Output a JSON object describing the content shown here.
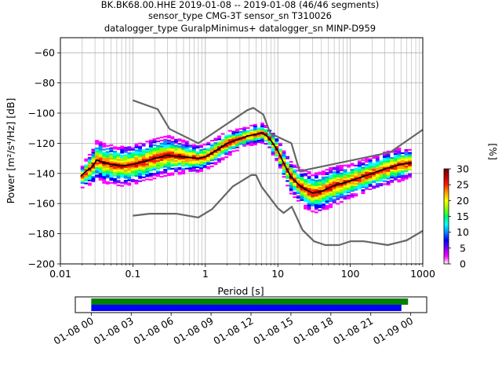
{
  "chart_data": [
    {
      "type": "heatmap",
      "title_lines": [
        "BK.BK68.00.HHE   2019-01-08 -- 2019-01-08  (46/46 segments)",
        "sensor_type CMG-3T sensor_sn T310026",
        "datalogger_type GuralpMinimus+ datalogger_sn MINP-D959"
      ],
      "xlabel": "Period [s]",
      "ylabel": "Power [m²/s⁴/Hz] [dB]",
      "xscale": "log",
      "xlim": [
        0.01,
        1000
      ],
      "ylim": [
        -200,
        -50
      ],
      "grid": true,
      "x_ticks": [
        {
          "value": 0.01,
          "label": "0.01"
        },
        {
          "value": 0.1,
          "label": "0.1"
        },
        {
          "value": 1,
          "label": "1"
        },
        {
          "value": 10,
          "label": "10"
        },
        {
          "value": 100,
          "label": "100"
        },
        {
          "value": 1000,
          "label": "1000"
        }
      ],
      "y_ticks": [
        -60,
        -80,
        -100,
        -120,
        -140,
        -160,
        -180,
        -200
      ],
      "colorbar": {
        "label": "[%]",
        "range": [
          0,
          30
        ],
        "ticks": [
          0,
          5,
          10,
          15,
          20,
          25,
          30
        ],
        "colors": [
          "#ffffff",
          "#ff00ff",
          "#7b00ff",
          "#0000ff",
          "#0090ff",
          "#00ffff",
          "#00ff60",
          "#90ff00",
          "#ffff00",
          "#ffa000",
          "#ff2000",
          "#c00000",
          "#700000"
        ]
      },
      "density_band": [
        {
          "x": 0.019,
          "y": -143,
          "w": 3
        },
        {
          "x": 0.022,
          "y": -140,
          "w": 4
        },
        {
          "x": 0.027,
          "y": -136,
          "w": 5
        },
        {
          "x": 0.032,
          "y": -131,
          "w": 6
        },
        {
          "x": 0.04,
          "y": -133,
          "w": 6
        },
        {
          "x": 0.05,
          "y": -134,
          "w": 6
        },
        {
          "x": 0.07,
          "y": -135,
          "w": 6
        },
        {
          "x": 0.1,
          "y": -134,
          "w": 6
        },
        {
          "x": 0.15,
          "y": -132,
          "w": 6
        },
        {
          "x": 0.2,
          "y": -130,
          "w": 6
        },
        {
          "x": 0.3,
          "y": -128,
          "w": 6
        },
        {
          "x": 0.5,
          "y": -129,
          "w": 5
        },
        {
          "x": 0.8,
          "y": -130,
          "w": 4
        },
        {
          "x": 1.0,
          "y": -129,
          "w": 4
        },
        {
          "x": 1.5,
          "y": -124,
          "w": 4
        },
        {
          "x": 2,
          "y": -120,
          "w": 4
        },
        {
          "x": 3,
          "y": -117,
          "w": 3
        },
        {
          "x": 4,
          "y": -115,
          "w": 3
        },
        {
          "x": 5,
          "y": -114,
          "w": 3
        },
        {
          "x": 6,
          "y": -113,
          "w": 3
        },
        {
          "x": 7,
          "y": -115,
          "w": 3
        },
        {
          "x": 8,
          "y": -118,
          "w": 3
        },
        {
          "x": 10,
          "y": -125,
          "w": 4
        },
        {
          "x": 12,
          "y": -133,
          "w": 4
        },
        {
          "x": 15,
          "y": -142,
          "w": 5
        },
        {
          "x": 20,
          "y": -148,
          "w": 5
        },
        {
          "x": 25,
          "y": -151,
          "w": 6
        },
        {
          "x": 30,
          "y": -153,
          "w": 6
        },
        {
          "x": 40,
          "y": -152,
          "w": 6
        },
        {
          "x": 60,
          "y": -148,
          "w": 6
        },
        {
          "x": 100,
          "y": -145,
          "w": 5
        },
        {
          "x": 200,
          "y": -140,
          "w": 5
        },
        {
          "x": 300,
          "y": -137,
          "w": 5
        },
        {
          "x": 500,
          "y": -134,
          "w": 5
        },
        {
          "x": 700,
          "y": -133,
          "w": 4
        }
      ],
      "series": [
        {
          "role": "mode",
          "color": "#000000",
          "points": [
            [
              0.019,
              -142
            ],
            [
              0.022,
              -139
            ],
            [
              0.027,
              -136
            ],
            [
              0.032,
              -131
            ],
            [
              0.04,
              -133
            ],
            [
              0.05,
              -134
            ],
            [
              0.07,
              -135
            ],
            [
              0.1,
              -134
            ],
            [
              0.15,
              -132
            ],
            [
              0.2,
              -130
            ],
            [
              0.3,
              -128
            ],
            [
              0.5,
              -129
            ],
            [
              0.8,
              -130
            ],
            [
              1.0,
              -129
            ],
            [
              1.5,
              -124
            ],
            [
              2,
              -120
            ],
            [
              3,
              -117
            ],
            [
              4,
              -115
            ],
            [
              5,
              -114
            ],
            [
              6,
              -113
            ],
            [
              7,
              -115
            ],
            [
              8,
              -118
            ],
            [
              10,
              -125
            ],
            [
              12,
              -133
            ],
            [
              15,
              -142
            ],
            [
              20,
              -148
            ],
            [
              25,
              -151
            ],
            [
              30,
              -153
            ],
            [
              40,
              -152
            ],
            [
              60,
              -148
            ],
            [
              100,
              -145
            ],
            [
              200,
              -140
            ],
            [
              300,
              -137
            ],
            [
              500,
              -134
            ],
            [
              700,
              -133
            ]
          ]
        },
        {
          "role": "new-high-noise-model",
          "color": "#666666",
          "points": [
            [
              0.1,
              -91.5
            ],
            [
              0.22,
              -97.4
            ],
            [
              0.32,
              -110.5
            ],
            [
              0.8,
              -120
            ],
            [
              3.8,
              -98
            ],
            [
              4.6,
              -96.5
            ],
            [
              6.3,
              -101
            ],
            [
              7.9,
              -113.5
            ],
            [
              15.4,
              -120
            ],
            [
              20,
              -138.5
            ],
            [
              354.8,
              -126
            ],
            [
              1000,
              -111
            ]
          ]
        },
        {
          "role": "new-low-noise-model",
          "color": "#666666",
          "points": [
            [
              0.1,
              -168
            ],
            [
              0.17,
              -166.7
            ],
            [
              0.4,
              -166.7
            ],
            [
              0.8,
              -169.2
            ],
            [
              1.24,
              -163.7
            ],
            [
              2.4,
              -148.6
            ],
            [
              4.3,
              -141.1
            ],
            [
              5.0,
              -141.1
            ],
            [
              6.0,
              -149
            ],
            [
              10,
              -163
            ],
            [
              12,
              -166.2
            ],
            [
              15.6,
              -162.1
            ],
            [
              21.9,
              -177.5
            ],
            [
              31.6,
              -185
            ],
            [
              45,
              -187.5
            ],
            [
              70,
              -187.5
            ],
            [
              101,
              -185
            ],
            [
              154,
              -185
            ],
            [
              328,
              -187.5
            ],
            [
              600,
              -184.4
            ],
            [
              1000,
              -178
            ]
          ]
        }
      ]
    },
    {
      "type": "timeline",
      "x_ticks": [
        "01-08 00",
        "01-08 03",
        "01-08 06",
        "01-08 09",
        "01-08 12",
        "01-08 15",
        "01-08 18",
        "01-08 21",
        "01-09 00"
      ],
      "x_tick_hours": [
        0,
        3,
        6,
        9,
        12,
        15,
        18,
        21,
        24
      ],
      "xlim_hours": [
        -1.2,
        25.2
      ],
      "bars": [
        {
          "color": "#008000",
          "start_hour": 0,
          "end_hour": 23.8
        },
        {
          "color": "#0000ff",
          "start_hour": 0,
          "end_hour": 23.3
        }
      ]
    }
  ]
}
